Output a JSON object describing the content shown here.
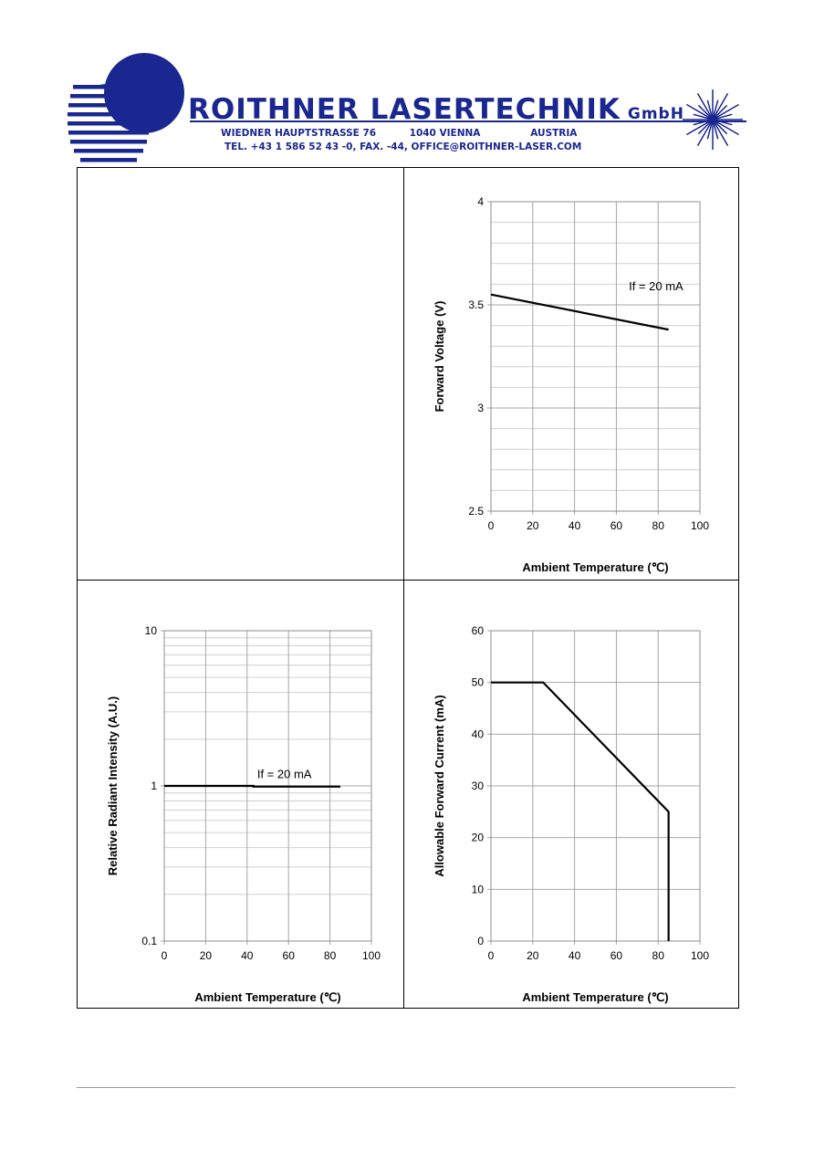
{
  "header": {
    "company": "ROITHNER LASERTECHNIK",
    "gmbh": "GmbH",
    "address": "WIEDNER HAUPTSTRASSE 76          1040 VIENNA               AUSTRIA",
    "contact": "TEL. +43 1 586 52 43 -0, FAX. -44, OFFICE@ROITHNER-LASER.COM"
  },
  "colors": {
    "brand": "#1a2790",
    "grid": "#bfbfbf",
    "line": "#000000"
  },
  "chart_data": [
    {
      "type": "line",
      "panel": "top-right",
      "title": "",
      "xlabel": "Ambient Temperature (℃)",
      "ylabel": "Forward Voltage (V)",
      "xlim": [
        0,
        100
      ],
      "ylim": [
        2.5,
        4
      ],
      "xticks": [
        "0",
        "20",
        "40",
        "60",
        "80",
        "100"
      ],
      "yticks": [
        "2.5",
        "3",
        "3.5",
        "4"
      ],
      "annotation": "If = 20 mA",
      "series": [
        {
          "x": [
            0,
            85
          ],
          "y": [
            3.55,
            3.38
          ]
        }
      ]
    },
    {
      "type": "line",
      "panel": "bottom-left",
      "title": "",
      "xlabel": "Ambient Temperature (℃)",
      "ylabel": "Relative Radiant Intensity (A.U.)",
      "xlim": [
        0,
        100
      ],
      "ylim": [
        0.1,
        10
      ],
      "yscale": "log",
      "xticks": [
        "0",
        "20",
        "40",
        "60",
        "80",
        "100"
      ],
      "yticks": [
        "0.1",
        "1",
        "10"
      ],
      "annotation": "If = 20 mA",
      "series": [
        {
          "x": [
            0,
            43,
            43,
            85
          ],
          "y": [
            1.0,
            1.0,
            0.99,
            0.99
          ]
        }
      ]
    },
    {
      "type": "line",
      "panel": "bottom-right",
      "title": "",
      "xlabel": "Ambient Temperature (℃)",
      "ylabel": "Allowable Forward Current (mA)",
      "xlim": [
        0,
        100
      ],
      "ylim": [
        0,
        60
      ],
      "xticks": [
        "0",
        "20",
        "40",
        "60",
        "80",
        "100"
      ],
      "yticks": [
        "0",
        "10",
        "20",
        "30",
        "40",
        "50",
        "60"
      ],
      "annotation": "",
      "series": [
        {
          "x": [
            0,
            25,
            85,
            85
          ],
          "y": [
            50,
            50,
            25,
            0
          ]
        }
      ]
    }
  ]
}
